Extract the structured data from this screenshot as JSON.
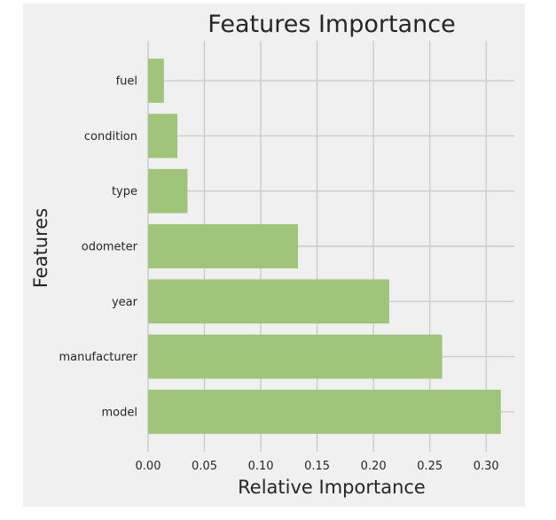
{
  "chart_data": {
    "type": "bar",
    "orientation": "horizontal",
    "title": "Features Importance",
    "xlabel": "Relative Importance",
    "ylabel": "Features",
    "categories": [
      "model",
      "manufacturer",
      "year",
      "odometer",
      "type",
      "condition",
      "fuel"
    ],
    "values": [
      0.313,
      0.261,
      0.214,
      0.133,
      0.035,
      0.026,
      0.014
    ],
    "xlim": [
      0,
      0.325
    ],
    "xticks": [
      "0.00",
      "0.05",
      "0.10",
      "0.15",
      "0.20",
      "0.25",
      "0.30"
    ],
    "grid": true,
    "colors": {
      "bar": "#9fc57a",
      "background": "#f0f0f0",
      "grid": "#cbcbcb"
    }
  }
}
